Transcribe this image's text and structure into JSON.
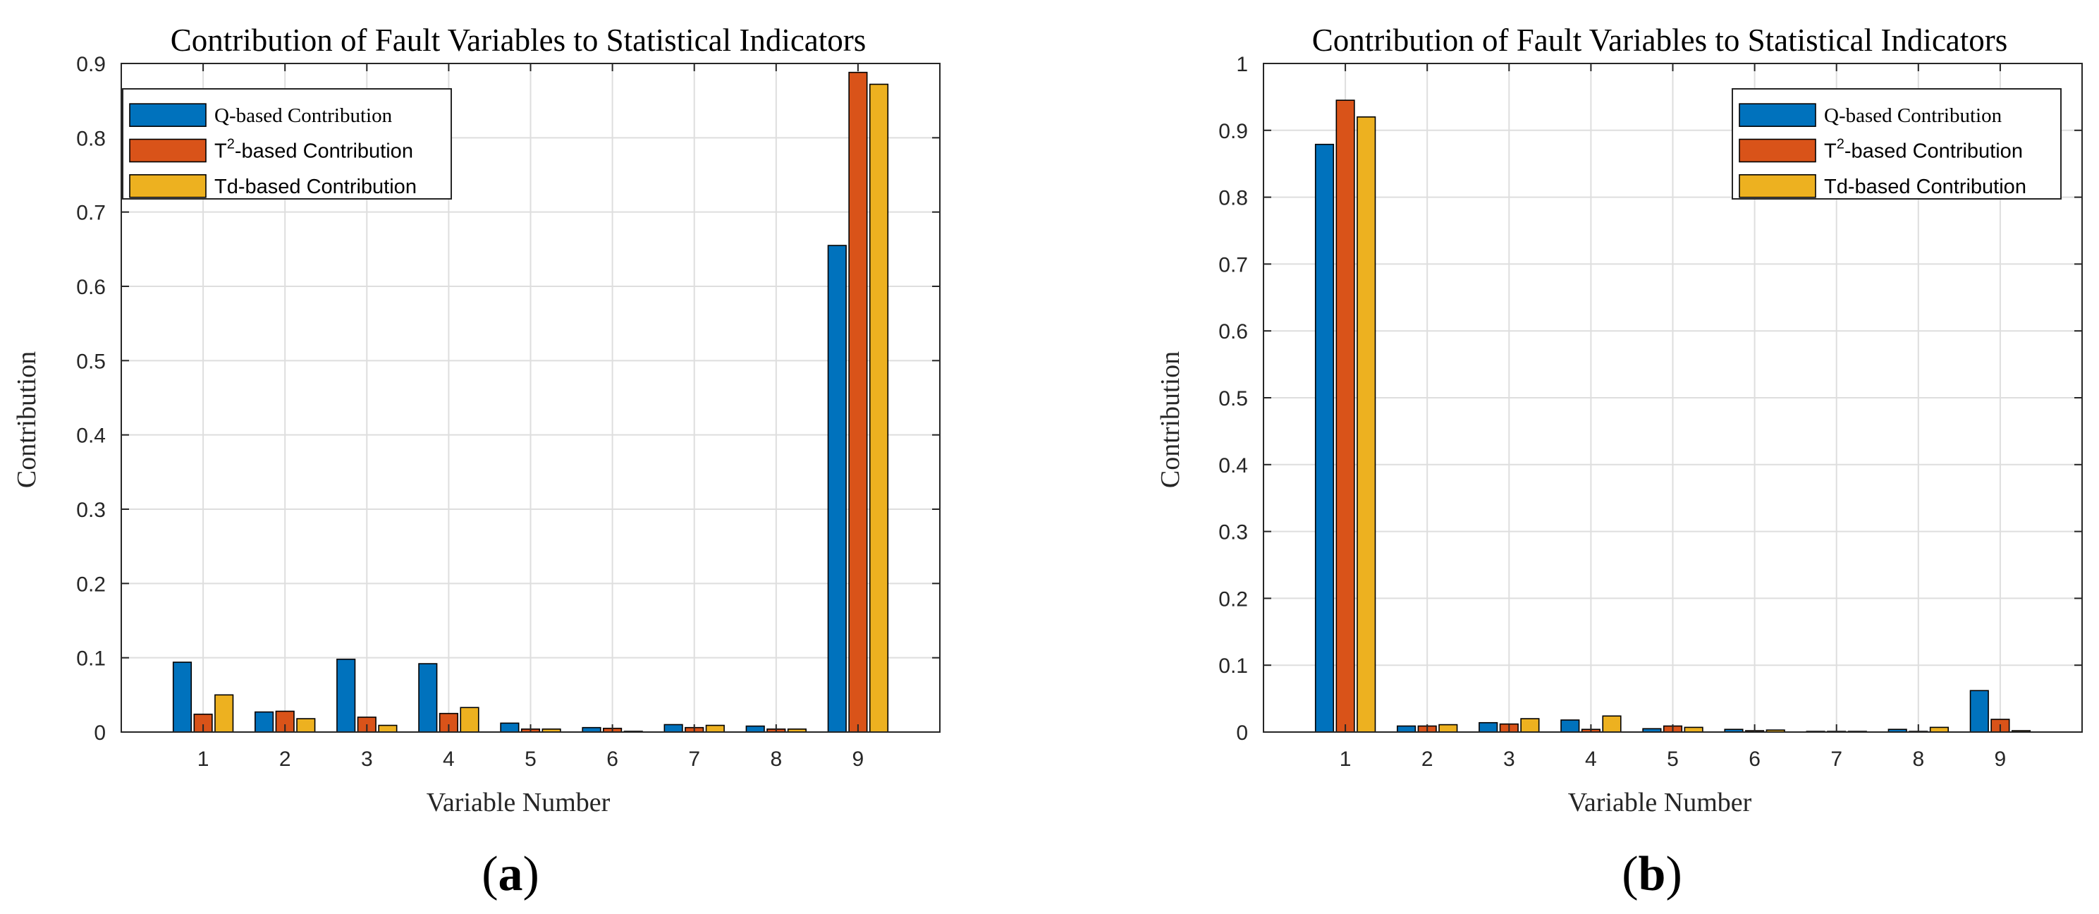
{
  "colors": {
    "q": "#0072BD",
    "t2": "#D95319",
    "td": "#EDB120",
    "grid": "#DEDEDE",
    "axis": "#262626"
  },
  "chart_data": [
    {
      "type": "bar",
      "panel": "(a)",
      "panel_prefix": "(",
      "panel_letter": "a",
      "panel_suffix": ")",
      "title": "Contribution of Fault Variables to Statistical Indicators",
      "xlabel": "Variable Number",
      "ylabel": "Contribution",
      "ylim": [
        0,
        0.9
      ],
      "yticks": [
        "0",
        "0.1",
        "0.2",
        "0.3",
        "0.4",
        "0.5",
        "0.6",
        "0.7",
        "0.8",
        "0.9"
      ],
      "categories": [
        "1",
        "2",
        "3",
        "4",
        "5",
        "6",
        "7",
        "8",
        "9"
      ],
      "grid": true,
      "legend_position": "top-left",
      "legend": [
        {
          "text": "Q-based Contribution"
        },
        {
          "text": "T",
          "sup": "2",
          "rest": "-based Contribution"
        },
        {
          "text": "Td-based Contribution"
        }
      ],
      "series": [
        {
          "name": "Q-based Contribution",
          "values": [
            0.094,
            0.027,
            0.098,
            0.092,
            0.012,
            0.006,
            0.01,
            0.008,
            0.655
          ]
        },
        {
          "name": "T2-based Contribution",
          "values": [
            0.024,
            0.028,
            0.02,
            0.025,
            0.004,
            0.005,
            0.006,
            0.004,
            0.888
          ]
        },
        {
          "name": "Td-based Contribution",
          "values": [
            0.05,
            0.018,
            0.009,
            0.033,
            0.004,
            0.001,
            0.009,
            0.004,
            0.872
          ]
        }
      ]
    },
    {
      "type": "bar",
      "panel": "(b)",
      "panel_prefix": "(",
      "panel_letter": "b",
      "panel_suffix": ")",
      "title": "Contribution of Fault Variables to Statistical Indicators",
      "xlabel": "Variable Number",
      "ylabel": "Contribution",
      "ylim": [
        0,
        1
      ],
      "yticks": [
        "0",
        "0.1",
        "0.2",
        "0.3",
        "0.4",
        "0.5",
        "0.6",
        "0.7",
        "0.8",
        "0.9",
        "1"
      ],
      "categories": [
        "1",
        "2",
        "3",
        "4",
        "5",
        "6",
        "7",
        "8",
        "9"
      ],
      "grid": true,
      "legend_position": "top-right",
      "legend": [
        {
          "text": "Q-based Contribution"
        },
        {
          "text": "T",
          "sup": "2",
          "rest": "-based Contribution"
        },
        {
          "text": "Td-based Contribution"
        }
      ],
      "series": [
        {
          "name": "Q-based Contribution",
          "values": [
            0.879,
            0.009,
            0.014,
            0.018,
            0.005,
            0.004,
            0.001,
            0.004,
            0.062
          ]
        },
        {
          "name": "T2-based Contribution",
          "values": [
            0.945,
            0.009,
            0.012,
            0.004,
            0.009,
            0.002,
            0.001,
            0.001,
            0.019
          ]
        },
        {
          "name": "Td-based Contribution",
          "values": [
            0.92,
            0.011,
            0.02,
            0.024,
            0.007,
            0.003,
            0.001,
            0.007,
            0.002
          ]
        }
      ]
    }
  ]
}
